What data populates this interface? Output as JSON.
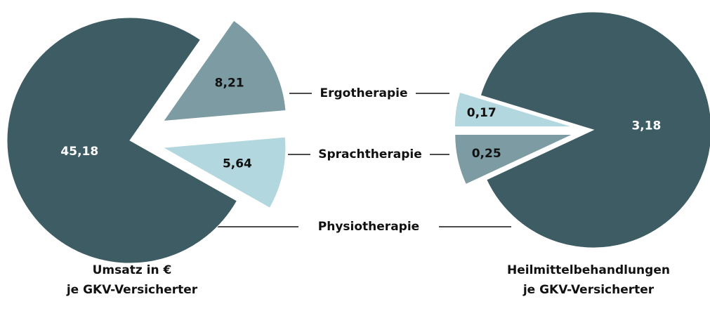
{
  "chart_data": [
    {
      "type": "pie",
      "title": [
        "Umsatz in €",
        "je GKV-Versicherter"
      ],
      "categories": [
        "Physiotherapie",
        "Ergotherapie",
        "Sprachtherapie"
      ],
      "values": [
        45.18,
        8.21,
        5.64
      ],
      "value_labels": [
        "45,18",
        "8,21",
        "5,64"
      ],
      "colors": [
        "#3d5c63",
        "#7d9ba2",
        "#b3d7de"
      ]
    },
    {
      "type": "pie",
      "title": [
        "Heilmittelbehandlungen",
        "je GKV-Versicherter"
      ],
      "values": [
        3.18,
        0.25,
        0.17
      ],
      "value_labels": [
        "3,18",
        "0,25",
        "0,17"
      ],
      "colors": [
        "#3d5c63",
        "#7d9ba2",
        "#b3d7de"
      ]
    }
  ]
}
